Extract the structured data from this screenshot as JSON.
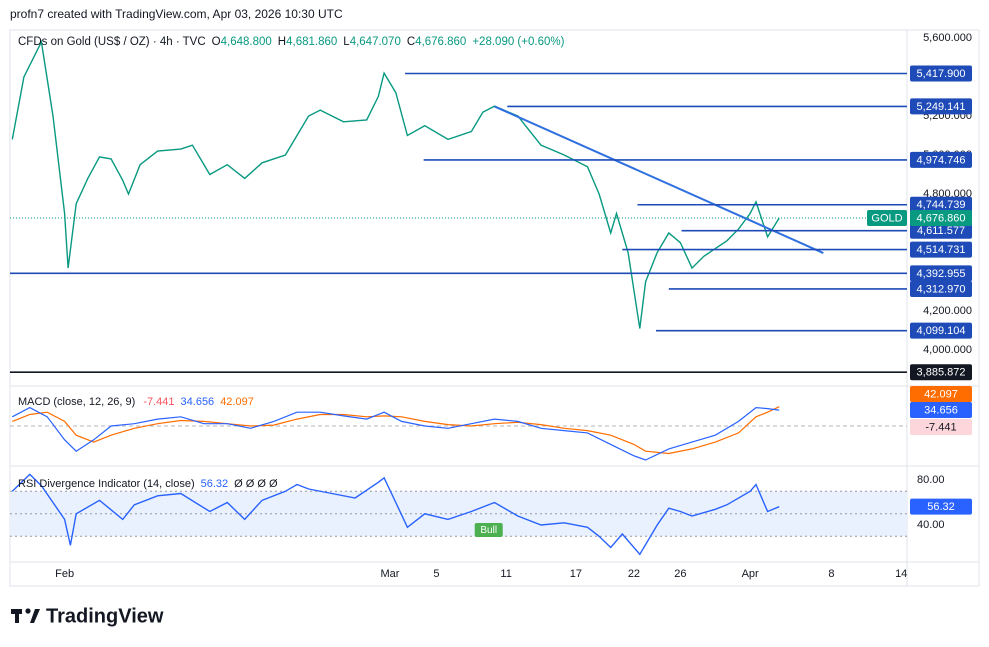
{
  "header": {
    "credit": "profn7 created with TradingView.com, Apr 03, 2026 10:30 UTC"
  },
  "brand": "TradingView",
  "chart_data": [
    {
      "type": "line",
      "title": "CFDs on Gold (US$ / OZ) · 4h · TVC",
      "ohlc": [
        {
          "key": "O",
          "value": "4,648.800"
        },
        {
          "key": "H",
          "value": "4,681.860"
        },
        {
          "key": "L",
          "value": "4,647.070"
        },
        {
          "key": "C",
          "value": "4,676.860"
        }
      ],
      "change": "+28.090 (+0.60%)",
      "x": [
        27.5,
        28.5,
        30,
        31,
        32,
        32.3,
        33,
        34,
        35,
        36,
        37,
        37.5,
        38.5,
        40,
        42,
        43,
        44.5,
        46,
        47.5,
        49,
        51,
        52,
        53,
        54,
        56,
        58,
        59,
        59.5,
        60.5,
        61.5,
        63,
        65,
        67,
        68,
        69,
        71,
        73,
        75,
        77,
        78,
        79,
        79.5,
        80.5,
        81.5,
        82,
        83,
        84,
        85,
        86,
        87,
        88,
        89,
        90,
        91,
        91.5,
        92.5,
        93.5
      ],
      "series": [
        {
          "name": "GOLD",
          "color": "#089981",
          "values": [
            5080,
            5400,
            5580,
            5200,
            4700,
            4420,
            4750,
            4880,
            4990,
            4980,
            4870,
            4800,
            4950,
            5020,
            5030,
            5050,
            4900,
            4950,
            4880,
            4960,
            5000,
            5100,
            5200,
            5230,
            5170,
            5180,
            5300,
            5420,
            5320,
            5100,
            5150,
            5080,
            5120,
            5220,
            5250,
            5200,
            5050,
            5000,
            4940,
            4800,
            4600,
            4700,
            4500,
            4110,
            4350,
            4500,
            4600,
            4550,
            4420,
            4480,
            4520,
            4560,
            4620,
            4700,
            4760,
            4580,
            4676.86
          ]
        }
      ],
      "price_tag": {
        "value": 4676.86,
        "label": "4,676.860"
      },
      "xlim": [
        27.3,
        104.5
      ],
      "xticks": [
        {
          "value": 32,
          "label": "Feb"
        },
        5,
        11,
        17,
        22,
        {
          "value": 60,
          "label": "Mar"
        },
        {
          "value": 64,
          "label": "5"
        },
        {
          "value": 70,
          "label": "11"
        },
        {
          "value": 76,
          "label": "17"
        },
        {
          "value": 81,
          "label": "22"
        },
        {
          "value": 85,
          "label": "26"
        },
        {
          "value": 91,
          "label": "Apr"
        },
        {
          "value": 98,
          "label": "8"
        },
        {
          "value": 104,
          "label": "14"
        }
      ],
      "ylim": [
        3887,
        5641
      ],
      "yticks": [
        {
          "value": 4000,
          "label": "4,000.000"
        },
        {
          "value": 4200,
          "label": "4,200.000"
        },
        {
          "value": 4400,
          "label": "4,400.000"
        },
        {
          "value": 4600,
          "label": "4,600.000"
        },
        {
          "value": 4800,
          "label": "4,800.000"
        },
        {
          "value": 5000,
          "label": "5,000.000"
        },
        {
          "value": 5200,
          "label": "5,200.000"
        },
        {
          "value": 5400,
          "label": "5,400.000"
        },
        {
          "value": 5600,
          "label": "5,600.000"
        }
      ],
      "levels": [
        {
          "value": 5417.9,
          "label": "5,417.900",
          "start": 61.3,
          "color": "#1e4bb8"
        },
        {
          "value": 5249.141,
          "label": "5,249.141",
          "start": 70.1,
          "color": "#1e4bb8"
        },
        {
          "value": 4974.746,
          "label": "4,974.746",
          "start": 62.9,
          "color": "#1e4bb8"
        },
        {
          "value": 4744.739,
          "label": "4,744.739",
          "start": 81.3,
          "color": "#1e4bb8"
        },
        {
          "value": 4611.577,
          "label": "4,611.577",
          "start": 85.1,
          "color": "#1e4bb8"
        },
        {
          "value": 4514.731,
          "label": "4,514.731",
          "start": 80,
          "color": "#1e4bb8"
        },
        {
          "value": 4392.955,
          "label": "4,392.955",
          "start": 27.3,
          "color": "#1e4bb8"
        },
        {
          "value": 4312.97,
          "label": "4,312.970",
          "start": 84,
          "color": "#1e4bb8"
        },
        {
          "value": 4099.104,
          "label": "4,099.104",
          "start": 82.9,
          "color": "#1e4bb8"
        },
        {
          "value": 3885.872,
          "label": "3,885.872",
          "start": 27.3,
          "color": "#131722"
        }
      ],
      "trendline": {
        "x": [
          69,
          97.3
        ],
        "y": [
          5249.141,
          4497
        ],
        "color": "#2f6fe0"
      }
    },
    {
      "type": "line",
      "title": "MACD",
      "params": "(close, 12, 26, 9)",
      "x": [
        27.5,
        29,
        30.5,
        32,
        33,
        34.5,
        36,
        38,
        40,
        42,
        44,
        46,
        48,
        50,
        52,
        54,
        56,
        58,
        59.5,
        61,
        63,
        65,
        67,
        69,
        71,
        73,
        75,
        77,
        79,
        81,
        82,
        84,
        86,
        88,
        90,
        91.5,
        92.5,
        93.5
      ],
      "series": [
        {
          "color": "#2962ff",
          "values": [
            20,
            40,
            20,
            -30,
            -55,
            -30,
            0,
            5,
            15,
            20,
            5,
            5,
            -5,
            10,
            30,
            30,
            22,
            15,
            30,
            10,
            0,
            -5,
            5,
            15,
            10,
            -5,
            -10,
            -15,
            -40,
            -65,
            -74,
            -50,
            -35,
            -20,
            10,
            40,
            38,
            34.656
          ]
        },
        {
          "color": "#ff6d00",
          "values": [
            10,
            25,
            30,
            10,
            -20,
            -35,
            -20,
            -5,
            5,
            12,
            10,
            5,
            0,
            2,
            15,
            25,
            25,
            20,
            22,
            20,
            10,
            3,
            0,
            5,
            8,
            3,
            -5,
            -10,
            -20,
            -40,
            -55,
            -60,
            -50,
            -35,
            -15,
            20,
            30,
            42.097
          ]
        }
      ],
      "histogram_last": -7.441,
      "histogram_color": "#f7525f",
      "baseline": 0,
      "ylim": [
        -85,
        85
      ]
    },
    {
      "type": "line",
      "title": "RSI Divergence Indicator",
      "params": "(14, close)",
      "flags": "Ø Ø Ø Ø",
      "x": [
        27.5,
        29,
        30,
        31,
        32,
        32.5,
        33,
        35,
        37,
        38,
        40,
        42,
        44.5,
        46,
        47.5,
        49,
        51,
        52,
        53,
        55,
        57,
        59,
        59.5,
        60.5,
        61.5,
        63,
        65,
        67,
        69,
        71,
        73,
        75,
        77,
        78,
        79,
        80,
        81.5,
        83,
        84,
        85,
        86,
        88,
        89,
        91,
        91.5,
        92.5,
        93.5
      ],
      "series": [
        {
          "color": "#2962ff",
          "values": [
            70,
            85,
            75,
            60,
            45,
            22,
            50,
            62,
            45,
            58,
            66,
            68,
            52,
            60,
            45,
            62,
            70,
            76,
            72,
            68,
            64,
            78,
            82,
            60,
            38,
            50,
            45,
            52,
            60,
            48,
            40,
            42,
            38,
            30,
            20,
            32,
            14,
            40,
            55,
            52,
            48,
            54,
            58,
            70,
            76,
            52,
            56.32
          ]
        }
      ],
      "ylim": [
        8.9,
        90.7
      ],
      "yticks": [
        {
          "value": 80,
          "label": "80.00"
        },
        {
          "value": 40,
          "label": "40.00"
        }
      ],
      "band": [
        30,
        70
      ],
      "midline": 50,
      "annotation": {
        "text": "Bull",
        "x": 68.5,
        "y": 35.6,
        "color": "#4caf50"
      }
    }
  ]
}
